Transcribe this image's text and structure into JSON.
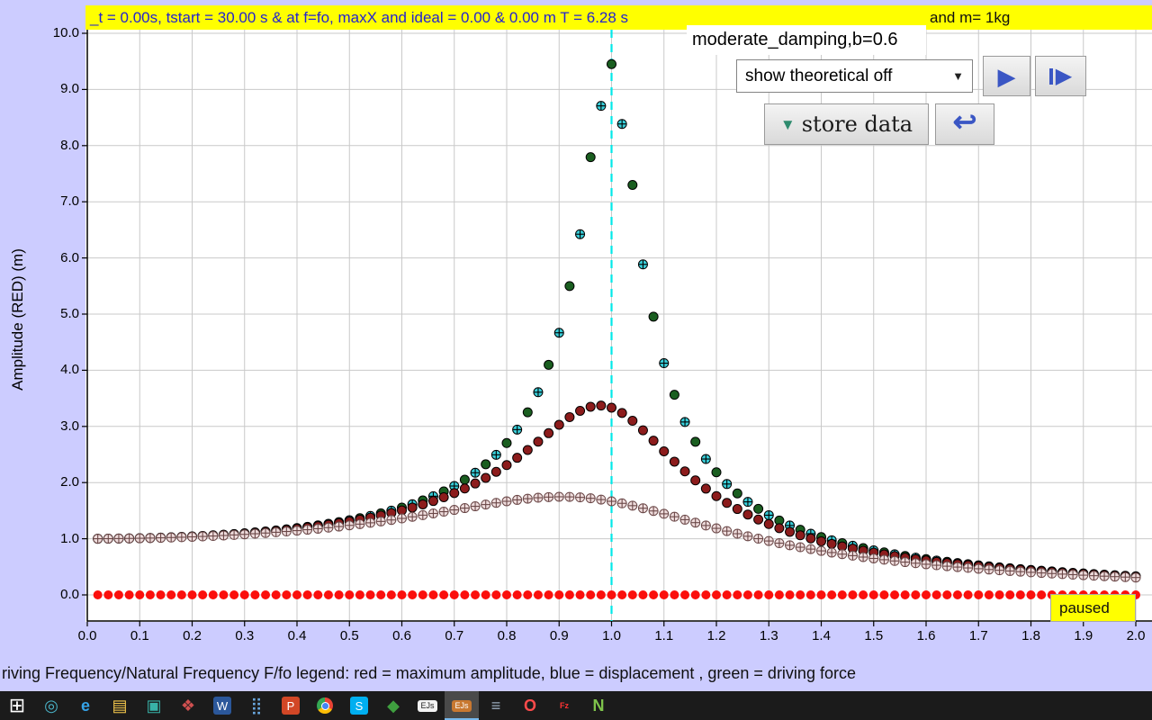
{
  "status_bar": {
    "left_text": "_t = 0.00s, tstart = 30.00 s & at f=fo, maxX and ideal = 0.00 & 0.00 m T = 6.28 s",
    "right_text": "and m= 1kg",
    "bg": "#ffff00",
    "text_color": "#2424cf"
  },
  "preset_box": {
    "label": "moderate_damping,b=0.6"
  },
  "controls": {
    "theoretical_select": {
      "value": "show theoretical off",
      "arrow": "▼"
    },
    "play_button": {
      "glyph": "▶"
    },
    "step_button": {
      "glyph": "▶"
    },
    "store_data_button": {
      "label": "store data",
      "arrow": "▼"
    },
    "undo_button": {
      "glyph": "↩"
    }
  },
  "paused_badge": {
    "label": "paused"
  },
  "footer": {
    "caption": "riving Frequency/Natural Frequency F/fo legend: red = maximum amplitude, blue = displacement , green = driving force"
  },
  "colors": {
    "frame_bg": "#ccccff",
    "plot_bg": "#ffffff",
    "status_bg": "#ffff00",
    "grid": "#c9c9c9",
    "axis": "#000000",
    "resonance_line": "#00e8e8",
    "accent_blue": "#3a56c4"
  },
  "chart_data": {
    "type": "scatter",
    "title": "",
    "xlabel": "Driving Frequency/Natural Frequency F/fo",
    "ylabel": "Amplitude (RED) (m)",
    "xlim": [
      0,
      2.03
    ],
    "ylim": [
      -0.48,
      10.06
    ],
    "grid": true,
    "grid_color": "#c9c9c9",
    "resonance_line_x": 1.0,
    "resonance_line_color": "#00e8e8",
    "x_ticks": [
      "0.0",
      "0.1",
      "0.2",
      "0.3",
      "0.4",
      "0.5",
      "0.6",
      "0.7",
      "0.8",
      "0.9",
      "1.0",
      "1.1",
      "1.2",
      "1.3",
      "1.4",
      "1.5",
      "1.6",
      "1.7",
      "1.8",
      "1.9",
      "2.0"
    ],
    "y_ticks": [
      "0.0",
      "1.0",
      "2.0",
      "3.0",
      "4.0",
      "5.0",
      "6.0",
      "7.0",
      "8.0",
      "9.0",
      "10.0"
    ],
    "legend_note": "red = maximum amplitude, blue = displacement, green = driving force",
    "sample_x": [
      0.1,
      0.2,
      0.3,
      0.4,
      0.5,
      0.6,
      0.7,
      0.8,
      0.9,
      1.0,
      1.1,
      1.2,
      1.3,
      1.4,
      1.5,
      1.6,
      1.7,
      1.8,
      1.9,
      2.0
    ],
    "series": [
      {
        "name": "green-driving-force-light-damping",
        "marker": "circle",
        "fill": "#1a5e20",
        "stroke": "#000000",
        "model": {
          "kind": "resonance",
          "zeta": 0.0529,
          "x_start": 0.04,
          "x_step": 0.04,
          "x_end": 2.0
        },
        "sample_y": [
          1.01,
          1.04,
          1.1,
          1.19,
          1.33,
          1.55,
          1.94,
          2.7,
          4.7,
          9.45,
          4.13,
          2.18,
          1.42,
          1.03,
          0.79,
          0.64,
          0.53,
          0.44,
          0.38,
          0.33
        ]
      },
      {
        "name": "blue-displacement-light-damping",
        "marker": "circle-cross",
        "fill": "#38cdd8",
        "stroke": "#000000",
        "cross": "#000000",
        "model": {
          "kind": "resonance",
          "zeta": 0.055,
          "x_start": 0.02,
          "x_step": 0.04,
          "x_end": 1.98
        },
        "sample_y": [
          1.01,
          1.04,
          1.1,
          1.19,
          1.33,
          1.55,
          1.94,
          2.7,
          4.67,
          9.09,
          4.13,
          2.18,
          1.42,
          1.03,
          0.79,
          0.64,
          0.53,
          0.44,
          0.38,
          0.33
        ]
      },
      {
        "name": "dark-red-max-amplitude-stored-b0.3",
        "marker": "circle",
        "fill": "#8c1c1c",
        "stroke": "#000000",
        "model": {
          "kind": "resonance",
          "zeta": 0.15,
          "x_start": 0.02,
          "x_step": 0.02,
          "x_end": 2.0
        },
        "sample_y": [
          1.01,
          1.04,
          1.09,
          1.18,
          1.31,
          1.5,
          1.81,
          2.31,
          3.03,
          3.33,
          2.56,
          1.76,
          1.26,
          0.95,
          0.75,
          0.61,
          0.51,
          0.43,
          0.37,
          0.33
        ]
      },
      {
        "name": "pink-max-amplitude-stored-b0.6",
        "marker": "circle-cross",
        "fill": "#eedcdc",
        "stroke": "#6b4848",
        "cross": "#6b4848",
        "model": {
          "kind": "resonance",
          "zeta": 0.3,
          "x_start": 0.02,
          "x_step": 0.02,
          "x_end": 2.0
        },
        "sample_y": [
          1.01,
          1.03,
          1.08,
          1.14,
          1.24,
          1.36,
          1.51,
          1.67,
          1.75,
          1.67,
          1.44,
          1.19,
          0.96,
          0.78,
          0.65,
          0.55,
          0.47,
          0.4,
          0.35,
          0.31
        ]
      },
      {
        "name": "red-max-amplitude-current-run",
        "marker": "circle",
        "fill": "#fb0f0c",
        "stroke": "none",
        "model": {
          "kind": "constant",
          "value": 0,
          "x_start": 0.02,
          "x_step": 0.02,
          "x_end": 2.0
        },
        "sample_y": [
          0,
          0,
          0,
          0,
          0,
          0,
          0,
          0,
          0,
          0,
          0,
          0,
          0,
          0,
          0,
          0,
          0,
          0,
          0,
          0
        ]
      }
    ]
  },
  "taskbar": {
    "items": [
      {
        "name": "start-button",
        "glyph": "⊞",
        "fg": "#ffffff"
      },
      {
        "name": "cortana-icon",
        "glyph": "◎",
        "fg": "#4ab3c8"
      },
      {
        "name": "edge-icon",
        "glyph": "e",
        "fg": "#35a3e8",
        "bold": true
      },
      {
        "name": "file-explorer-icon",
        "glyph": "▤",
        "fg": "#f5c84c"
      },
      {
        "name": "store-icon",
        "glyph": "▣",
        "fg": "#38b2a8"
      },
      {
        "name": "photos-icon",
        "glyph": "❖",
        "fg": "#d05050"
      },
      {
        "name": "word-icon",
        "glyph": "W",
        "fg": "#ffffff",
        "bg": "#2b579a"
      },
      {
        "name": "apps-grid-icon",
        "glyph": "⣿",
        "fg": "#6aa8e0"
      },
      {
        "name": "powerpoint-icon",
        "glyph": "P",
        "fg": "#ffffff",
        "bg": "#d24726"
      },
      {
        "name": "chrome-icon",
        "chrome": true
      },
      {
        "name": "skype-icon",
        "glyph": "S",
        "fg": "#ffffff",
        "bg": "#00aff0"
      },
      {
        "name": "green-app-icon",
        "glyph": "◆",
        "fg": "#3f9f3f"
      },
      {
        "name": "ejs-console-icon",
        "glyph": "EJs",
        "fg": "#222222",
        "bg": "#f2f2f2",
        "small": true
      },
      {
        "name": "ejs-app-icon",
        "glyph": "EJs",
        "fg": "#ffffff",
        "bg": "#c87830",
        "small": true,
        "active": true
      },
      {
        "name": "java-app-icon",
        "glyph": "≡",
        "fg": "#9aabbc"
      },
      {
        "name": "opera-icon",
        "glyph": "O",
        "fg": "#ff4b4b",
        "bold": true
      },
      {
        "name": "filezilla-icon",
        "glyph": "Fz",
        "fg": "#ff3333",
        "small": true,
        "bold": true
      },
      {
        "name": "notepadpp-icon",
        "glyph": "N",
        "fg": "#7ec34b",
        "bold": true
      }
    ]
  }
}
